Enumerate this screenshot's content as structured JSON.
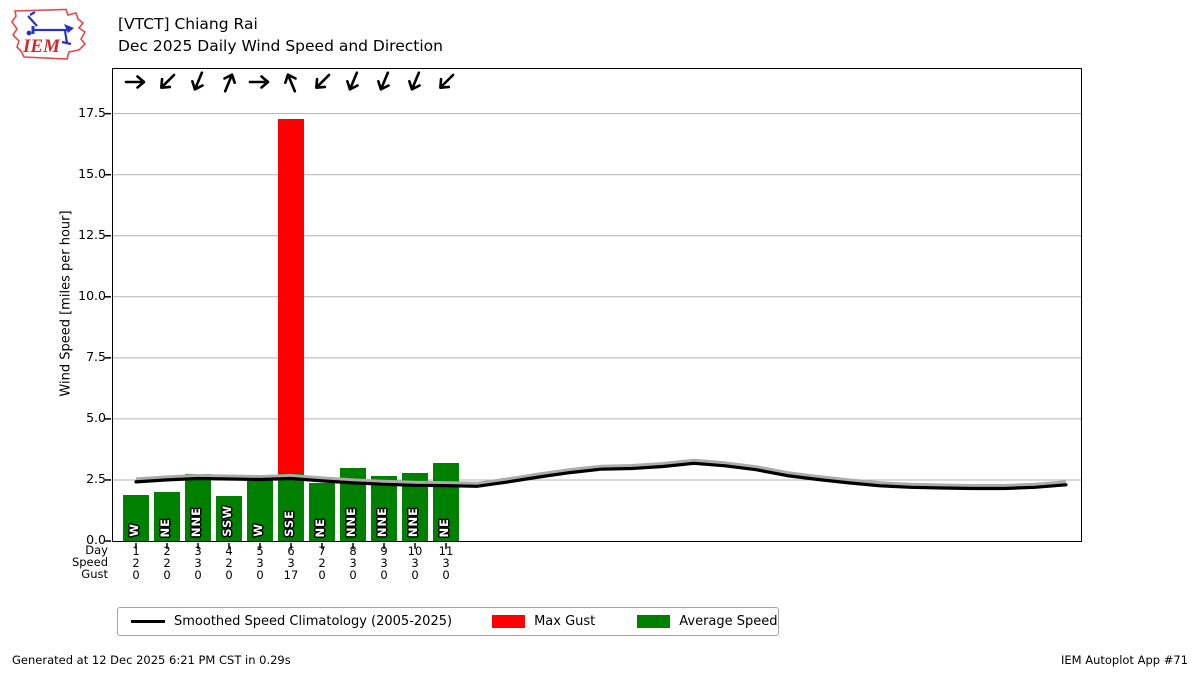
{
  "header": {
    "title_line1": "[VTCT] Chiang Rai",
    "title_line2": "Dec 2025 Daily Wind Speed and Direction",
    "logo_text": "IEM"
  },
  "axes": {
    "ylabel": "Wind Speed [miles per hour]",
    "row_labels": {
      "day": "Day",
      "speed": "Speed",
      "gust": "Gust"
    }
  },
  "legend": {
    "line_label": "Smoothed Speed Climatology (2005-2025)",
    "gust_label": "Max Gust",
    "avg_label": "Average Speed"
  },
  "footer": {
    "generated": "Generated at 12 Dec 2025 6:21 PM CST in 0.29s",
    "app": "IEM Autoplot App #71"
  },
  "chart_data": {
    "type": "bar",
    "title": "Dec 2025 Daily Wind Speed and Direction",
    "station": "[VTCT] Chiang Rai",
    "xlabel": "Day",
    "ylabel": "Wind Speed [miles per hour]",
    "ylim": [
      0,
      19.33
    ],
    "yticks": [
      0,
      2.5,
      5,
      7.5,
      10,
      12.5,
      15,
      17.5
    ],
    "grid": true,
    "legend_position": "bottom",
    "days": [
      {
        "day": "1",
        "dir": "W",
        "avg": 1.87,
        "gust": 0,
        "speed_text": "2",
        "gust_text": "0",
        "arrow_deg": 90
      },
      {
        "day": "2",
        "dir": "NE",
        "avg": 2.0,
        "gust": 0,
        "speed_text": "2",
        "gust_text": "0",
        "arrow_deg": 225
      },
      {
        "day": "3",
        "dir": "NNE",
        "avg": 2.73,
        "gust": 0,
        "speed_text": "3",
        "gust_text": "0",
        "arrow_deg": 202.5
      },
      {
        "day": "4",
        "dir": "SSW",
        "avg": 1.83,
        "gust": 0,
        "speed_text": "2",
        "gust_text": "0",
        "arrow_deg": 22.5
      },
      {
        "day": "5",
        "dir": "W",
        "avg": 2.54,
        "gust": 0,
        "speed_text": "3",
        "gust_text": "0",
        "arrow_deg": 90
      },
      {
        "day": "6",
        "dir": "SSE",
        "avg": 2.76,
        "gust": 17.3,
        "speed_text": "3",
        "gust_text": "17",
        "arrow_deg": 337.5
      },
      {
        "day": "7",
        "dir": "NE",
        "avg": 2.36,
        "gust": 0,
        "speed_text": "2",
        "gust_text": "0",
        "arrow_deg": 225
      },
      {
        "day": "8",
        "dir": "NNE",
        "avg": 3.0,
        "gust": 0,
        "speed_text": "3",
        "gust_text": "0",
        "arrow_deg": 202.5
      },
      {
        "day": "9",
        "dir": "NNE",
        "avg": 2.66,
        "gust": 0,
        "speed_text": "3",
        "gust_text": "0",
        "arrow_deg": 202.5
      },
      {
        "day": "10",
        "dir": "NNE",
        "avg": 2.8,
        "gust": 0,
        "speed_text": "3",
        "gust_text": "0",
        "arrow_deg": 202.5
      },
      {
        "day": "11",
        "dir": "NE",
        "avg": 3.18,
        "gust": 0,
        "speed_text": "3",
        "gust_text": "0",
        "arrow_deg": 225
      }
    ],
    "climatology": {
      "label": "Smoothed Speed Climatology (2005-2025)",
      "x": [
        1,
        2,
        3,
        4,
        5,
        6,
        7,
        8,
        9,
        10,
        11,
        12,
        13,
        14,
        15,
        16,
        17,
        18,
        19,
        20,
        21,
        22,
        23,
        24,
        25,
        26,
        27,
        28,
        29,
        30,
        31
      ],
      "y": [
        2.42,
        2.5,
        2.56,
        2.54,
        2.52,
        2.56,
        2.46,
        2.38,
        2.32,
        2.28,
        2.27,
        2.24,
        2.42,
        2.62,
        2.8,
        2.94,
        2.97,
        3.05,
        3.18,
        3.08,
        2.92,
        2.68,
        2.52,
        2.38,
        2.26,
        2.2,
        2.17,
        2.15,
        2.15,
        2.2,
        2.3
      ]
    },
    "colors": {
      "avg_bar": "#008000",
      "gust_bar": "#ff0000",
      "climo_line": "#000000",
      "climo_shadow": "#ababab",
      "grid": "#b3b3b3"
    }
  }
}
